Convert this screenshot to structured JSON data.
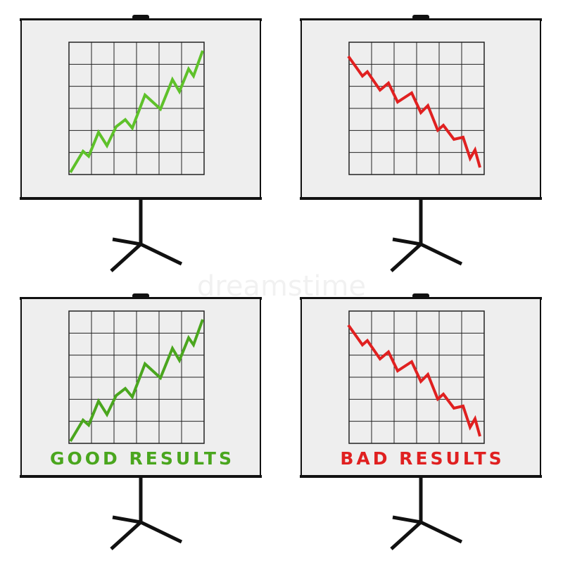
{
  "watermark": "dreamstime",
  "boards": [
    {
      "caption": "GOOD RESULTS"
    },
    {
      "caption": "BAD RESULTS"
    }
  ]
}
